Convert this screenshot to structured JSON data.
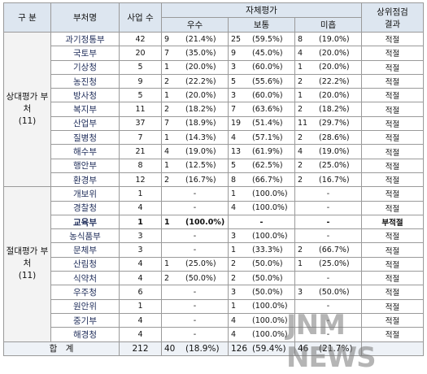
{
  "header": {
    "category": "구 분",
    "ministry": "부처명",
    "projects": "사업 수",
    "self_eval": "자체평가",
    "excellent": "우수",
    "normal": "보통",
    "poor": "미흡",
    "review": [
      "상위점검",
      "결과"
    ]
  },
  "groups": [
    {
      "label": [
        "상대평가 부",
        "처",
        "(11)"
      ],
      "rows": [
        [
          "과기정통부",
          "42",
          [
            "9",
            "(21.4%)"
          ],
          [
            "25",
            "(59.5%)"
          ],
          [
            "8",
            "(19.0%)"
          ],
          "적절"
        ],
        [
          "국토부",
          "20",
          [
            "7",
            "(35.0%)"
          ],
          [
            "9",
            "(45.0%)"
          ],
          [
            "4",
            "(20.0%)"
          ],
          "적절"
        ],
        [
          "기상청",
          "5",
          [
            "1",
            "(20.0%)"
          ],
          [
            "3",
            "(60.0%)"
          ],
          [
            "1",
            "(20.0%)"
          ],
          "적절"
        ],
        [
          "농진청",
          "9",
          [
            "2",
            "(22.2%)"
          ],
          [
            "5",
            "(55.6%)"
          ],
          [
            "2",
            "(22.2%)"
          ],
          "적절"
        ],
        [
          "방사청",
          "5",
          [
            "1",
            "(20.0%)"
          ],
          [
            "3",
            "(60.0%)"
          ],
          [
            "1",
            "(20.0%)"
          ],
          "적절"
        ],
        [
          "복지부",
          "11",
          [
            "2",
            "(18.2%)"
          ],
          [
            "7",
            "(63.6%)"
          ],
          [
            "2",
            "(18.2%)"
          ],
          "적절"
        ],
        [
          "산업부",
          "37",
          [
            "7",
            "(18.9%)"
          ],
          [
            "19",
            "(51.4%)"
          ],
          [
            "11",
            "(29.7%)"
          ],
          "적절"
        ],
        [
          "질병청",
          "7",
          [
            "1",
            "(14.3%)"
          ],
          [
            "4",
            "(57.1%)"
          ],
          [
            "2",
            "(28.6%)"
          ],
          "적절"
        ],
        [
          "해수부",
          "21",
          [
            "4",
            "(19.0%)"
          ],
          [
            "13",
            "(61.9%)"
          ],
          [
            "4",
            "(19.0%)"
          ],
          "적절"
        ],
        [
          "행안부",
          "8",
          [
            "1",
            "(12.5%)"
          ],
          [
            "5",
            "(62.5%)"
          ],
          [
            "2",
            "(25.0%)"
          ],
          "적절"
        ],
        [
          "환경부",
          "12",
          [
            "2",
            "(16.7%)"
          ],
          [
            "8",
            "(66.7%)"
          ],
          [
            "2",
            "(16.7%)"
          ],
          "적절"
        ]
      ]
    },
    {
      "label": [
        "절대평가 부",
        "처",
        "(11)"
      ],
      "rows": [
        [
          "개보위",
          "1",
          "-",
          [
            "1",
            "(100.0%)"
          ],
          "-",
          "적절"
        ],
        [
          "경찰청",
          "4",
          "-",
          [
            "4",
            "(100.0%)"
          ],
          "-",
          "적절"
        ],
        [
          "교육부",
          "1",
          [
            "1",
            "(100.0%)"
          ],
          "-",
          "-",
          "부적절"
        ],
        [
          "농식품부",
          "3",
          "-",
          [
            "3",
            "(100.0%)"
          ],
          "-",
          "적절"
        ],
        [
          "문체부",
          "3",
          "-",
          [
            "1",
            "(33.3%)"
          ],
          [
            "2",
            "(66.7%)"
          ],
          "적절"
        ],
        [
          "산림청",
          "4",
          [
            "1",
            "(25.0%)"
          ],
          [
            "2",
            "(50.0%)"
          ],
          [
            "1",
            "(25.0%)"
          ],
          "적절"
        ],
        [
          "식약처",
          "4",
          [
            "2",
            "(50.0%)"
          ],
          [
            "2",
            "(50.0%)"
          ],
          "-",
          "적절"
        ],
        [
          "우주청",
          "6",
          "-",
          [
            "3",
            "(50.0%)"
          ],
          [
            "3",
            "(50.0%)"
          ],
          "적절"
        ],
        [
          "원안위",
          "1",
          "-",
          [
            "1",
            "(100.0%)"
          ],
          "-",
          "적절"
        ],
        [
          "중기부",
          "4",
          "-",
          [
            "4",
            "(100.0%)"
          ],
          "-",
          "적절"
        ],
        [
          "해경청",
          "4",
          "-",
          [
            "4",
            "(100.0%)"
          ],
          "-",
          "적절"
        ]
      ]
    }
  ],
  "total": [
    "합　계",
    "212",
    [
      "40",
      "(18.9%)"
    ],
    [
      "126",
      "(59.4%)"
    ],
    [
      "46",
      "(21.7%)"
    ]
  ],
  "watermark": "JNM NEWS"
}
